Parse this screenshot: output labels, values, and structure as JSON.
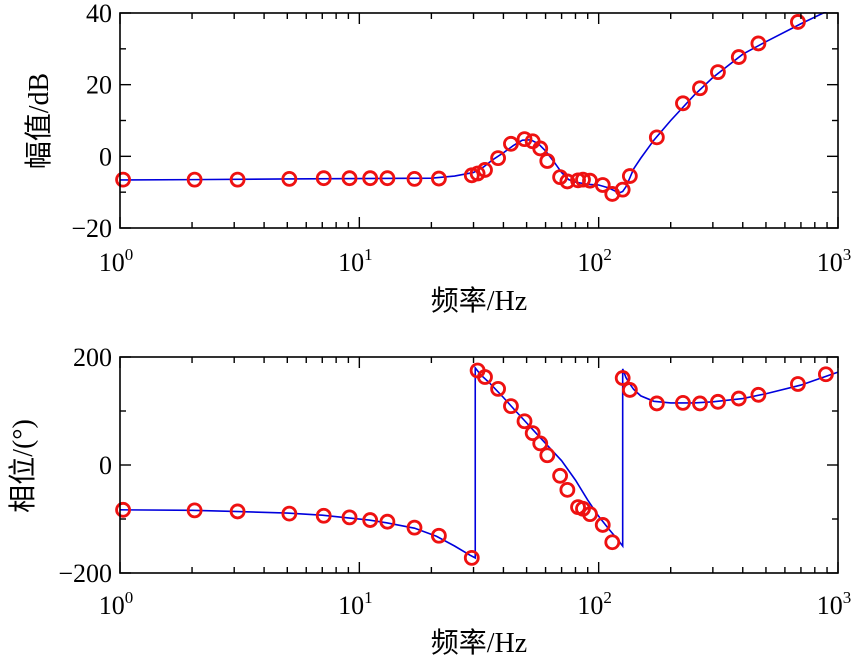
{
  "chart_data": [
    {
      "type": "line",
      "xscale": "log",
      "xlim": [
        1,
        1000
      ],
      "ylim": [
        -20,
        40
      ],
      "xlabel": "频率/Hz",
      "ylabel": "幅值/dB",
      "x_ticks": [
        {
          "base": "10",
          "exp": "0"
        },
        {
          "base": "10",
          "exp": "1"
        },
        {
          "base": "10",
          "exp": "2"
        },
        {
          "base": "10",
          "exp": "3"
        }
      ],
      "y_ticks": [
        "−20",
        "0",
        "20",
        "40"
      ],
      "y_tick_values": [
        -20,
        0,
        20,
        40
      ],
      "line_color": "#0000dd",
      "marker_color": "#ee1111",
      "curve": {
        "x": [
          1,
          2,
          5,
          10,
          20,
          25,
          30,
          33,
          36,
          40,
          44,
          48,
          52,
          56,
          60,
          65,
          70,
          75,
          80,
          90,
          100,
          110,
          118,
          122,
          126,
          130,
          135,
          140,
          150,
          170,
          200,
          250,
          300,
          400,
          500,
          700,
          900,
          1000
        ],
        "y": [
          -6.6,
          -6.5,
          -6.3,
          -6.2,
          -6.1,
          -5.5,
          -4.5,
          -3,
          -1,
          1,
          3,
          4.5,
          4.6,
          3.5,
          1.5,
          -1.5,
          -4.5,
          -6.5,
          -7.2,
          -7.8,
          -8,
          -8.8,
          -9.8,
          -10.2,
          -9.8,
          -8.5,
          -6,
          -3.5,
          -0.5,
          4.5,
          10,
          17,
          22,
          28.5,
          32,
          37,
          40.5,
          41.5
        ]
      },
      "markers": {
        "x": [
          1.03,
          2.05,
          3.1,
          5.1,
          7.1,
          9.1,
          11.1,
          13.1,
          17,
          21.5,
          29.5,
          31.2,
          33.5,
          38,
          43,
          49,
          53,
          57,
          61,
          69,
          74,
          82,
          86,
          92,
          104,
          114,
          126,
          135,
          175,
          225,
          265,
          315,
          385,
          465,
          680
        ],
        "y": [
          -6.5,
          -6.5,
          -6.5,
          -6.3,
          -6.1,
          -6.1,
          -6.1,
          -6.1,
          -6.3,
          -6.2,
          -5.3,
          -4.8,
          -3.8,
          -0.5,
          3.5,
          4.8,
          4.2,
          2.2,
          -1.3,
          -5.8,
          -7,
          -6.7,
          -6.5,
          -6.8,
          -8,
          -10.5,
          -9.3,
          -5.5,
          5.3,
          14.8,
          19,
          23.5,
          27.7,
          31.5,
          37.5
        ]
      }
    },
    {
      "type": "line",
      "xscale": "log",
      "xlim": [
        1,
        1000
      ],
      "ylim": [
        -200,
        200
      ],
      "xlabel": "频率/Hz",
      "ylabel": "相位/(°)",
      "x_ticks": [
        {
          "base": "10",
          "exp": "0"
        },
        {
          "base": "10",
          "exp": "1"
        },
        {
          "base": "10",
          "exp": "2"
        },
        {
          "base": "10",
          "exp": "3"
        }
      ],
      "y_ticks": [
        "−200",
        "0",
        "200"
      ],
      "y_tick_values": [
        -200,
        0,
        200
      ],
      "line_color": "#0000dd",
      "marker_color": "#ee1111",
      "curve": {
        "x": [
          1,
          2,
          3,
          5,
          7,
          9,
          11,
          13,
          17,
          21,
          25,
          29,
          30.5,
          30.5,
          32,
          35,
          40,
          45,
          50,
          55,
          60,
          70,
          80,
          90,
          100,
          110,
          120,
          126,
          126,
          130,
          135,
          140,
          150,
          170,
          200,
          250,
          300,
          400,
          500,
          700,
          1000
        ],
        "y": [
          -83,
          -84,
          -86,
          -89,
          -93,
          -98,
          -102,
          -107,
          -117,
          -132,
          -150,
          -167,
          -172,
          180,
          168,
          152,
          125,
          100,
          78,
          58,
          40,
          8,
          -28,
          -65,
          -95,
          -118,
          -138,
          -150,
          178,
          162,
          150,
          140,
          128,
          118,
          115,
          115,
          117,
          123,
          132,
          148,
          172
        ]
      },
      "markers": {
        "x": [
          1.03,
          2.05,
          3.1,
          5.1,
          7.1,
          9.1,
          11.1,
          13.1,
          17,
          21.5,
          29.5,
          31.2,
          33.5,
          38,
          43,
          49,
          53,
          57,
          61,
          69,
          74,
          82,
          86,
          92,
          104,
          114,
          126,
          135,
          175,
          225,
          265,
          315,
          385,
          465,
          680,
          890
        ],
        "y": [
          -83,
          -84,
          -86,
          -90,
          -94,
          -97,
          -102,
          -105,
          -116,
          -131,
          -172,
          175,
          163,
          141,
          109,
          81,
          59,
          40,
          18,
          -20,
          -46,
          -78,
          -81,
          -91,
          -111,
          -143,
          161,
          139,
          114,
          115,
          114,
          117,
          123,
          130,
          150,
          168
        ]
      }
    }
  ]
}
